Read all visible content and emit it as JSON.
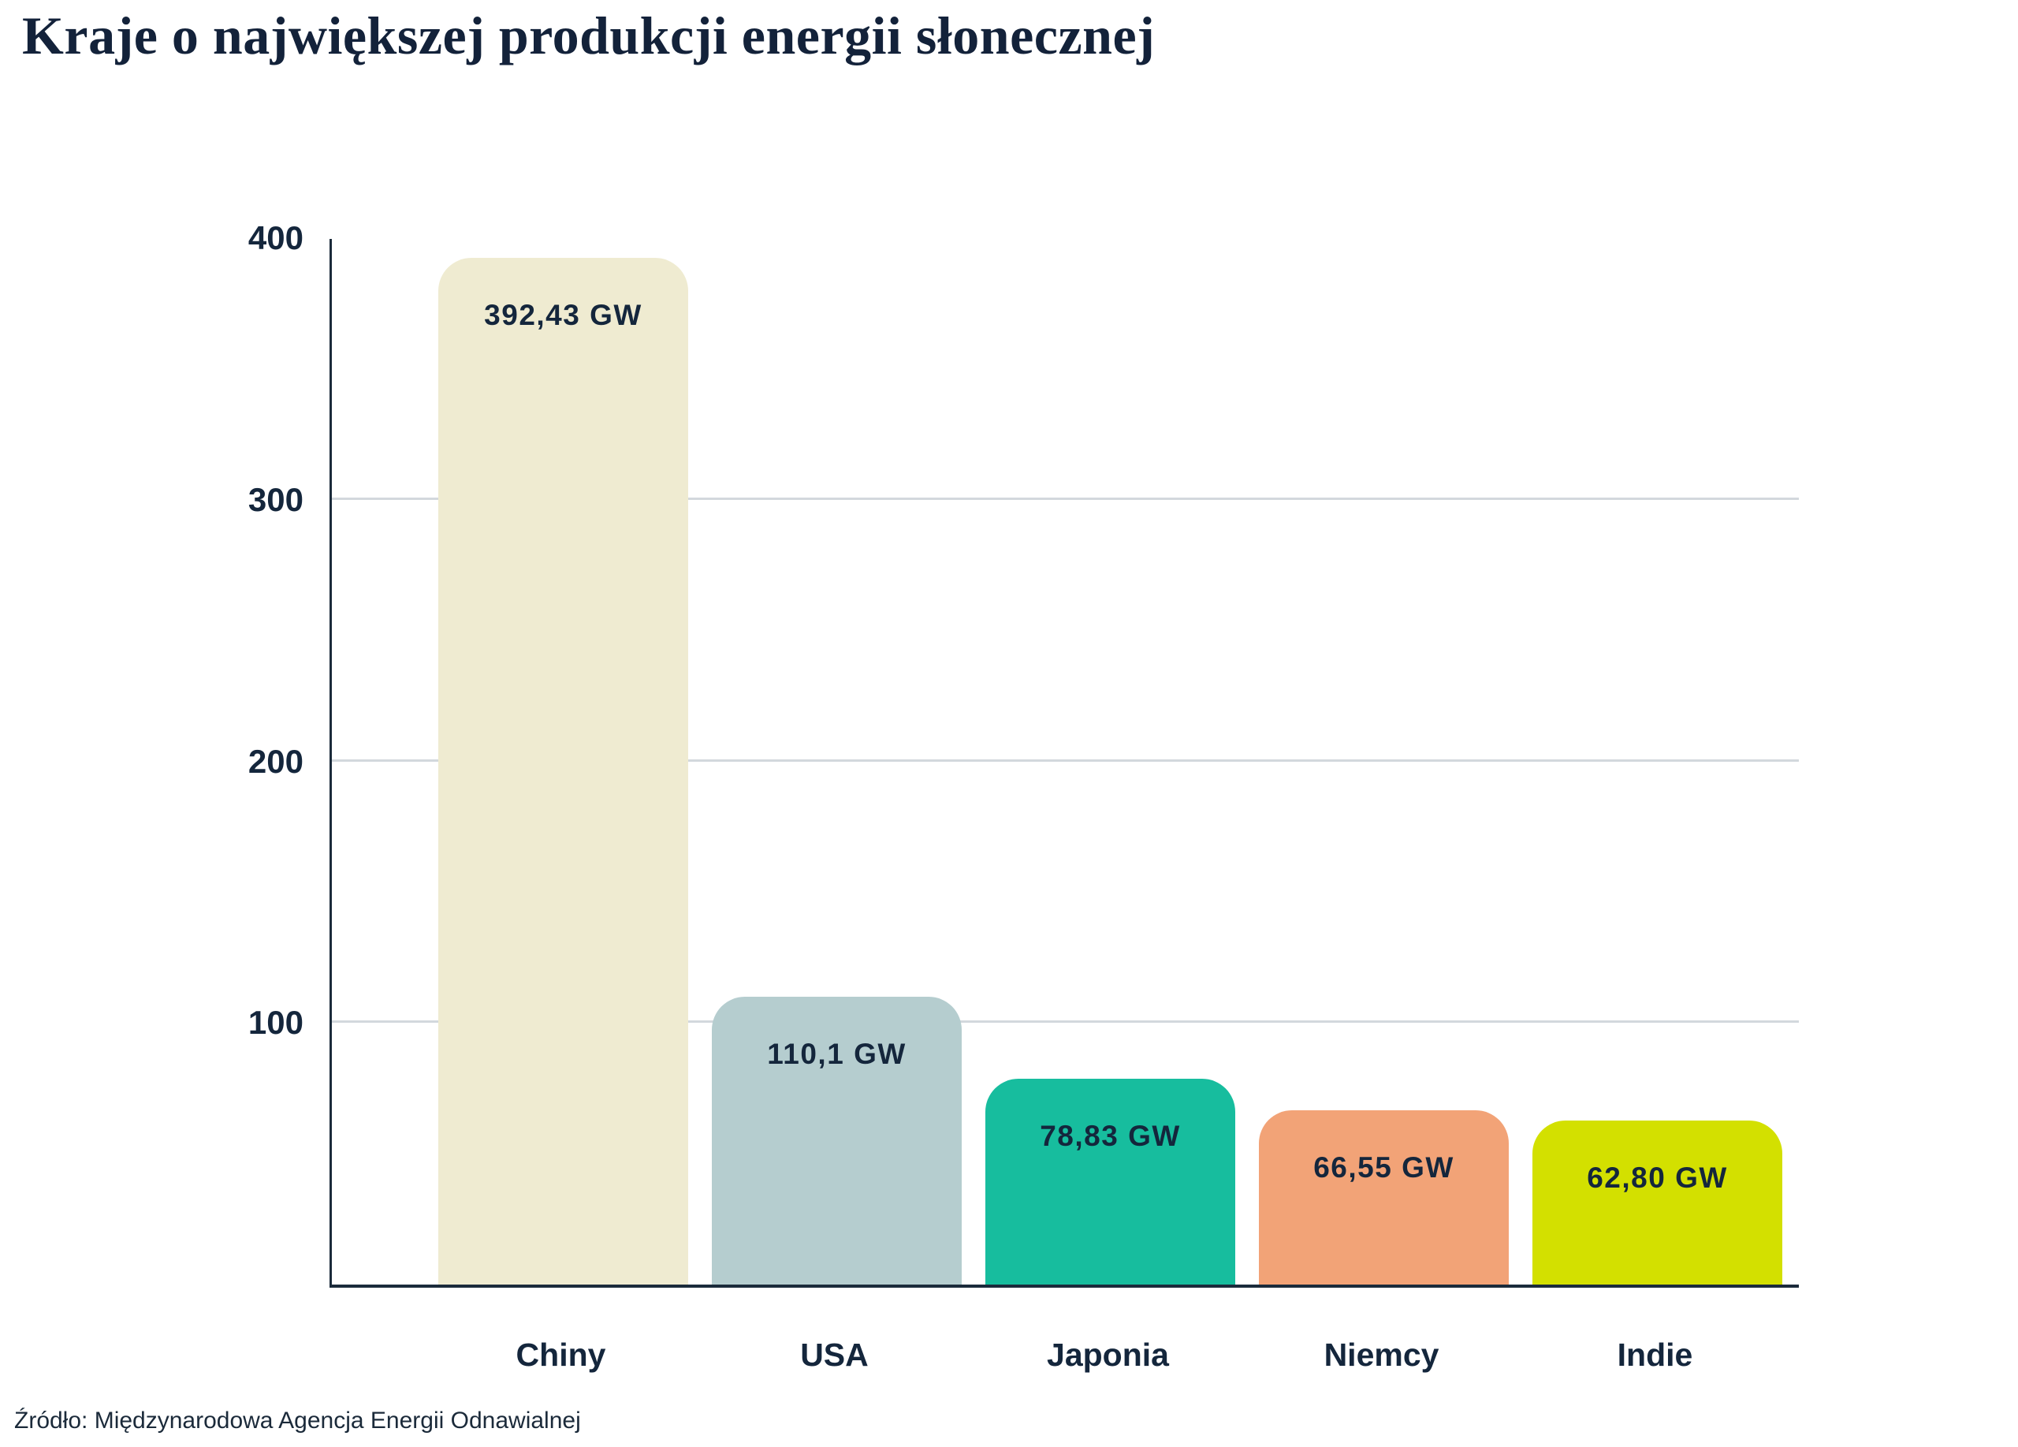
{
  "title": "Kraje o największej produkcji energii słonecznej",
  "source": "Źródło: Międzynarodowa Agencja Energii Odnawialnej",
  "chart_data": {
    "type": "bar",
    "title": "Kraje o największej produkcji energii słonecznej",
    "categories": [
      "Chiny",
      "USA",
      "Japonia",
      "Niemcy",
      "Indie"
    ],
    "values": [
      392.43,
      110.1,
      78.83,
      66.55,
      62.8
    ],
    "value_labels": [
      "392,43 GW",
      "110,1 GW",
      "78,83 GW",
      "66,55 GW",
      "62,80 GW"
    ],
    "bar_colors": [
      "#EFEBD1",
      "#B5CDCF",
      "#17BD9E",
      "#F2A377",
      "#D3E000"
    ],
    "unit": "GW",
    "xlabel": "",
    "ylabel": "",
    "ylim": [
      0,
      401
    ],
    "yticks": [
      400,
      300,
      200,
      100
    ],
    "gridlines": [
      300,
      200,
      100
    ],
    "grid": "horizontal-only",
    "legend": "none",
    "text_color": "#14263C",
    "grid_color": "#D3D8DD",
    "axis_color": "#1B2B3B"
  }
}
